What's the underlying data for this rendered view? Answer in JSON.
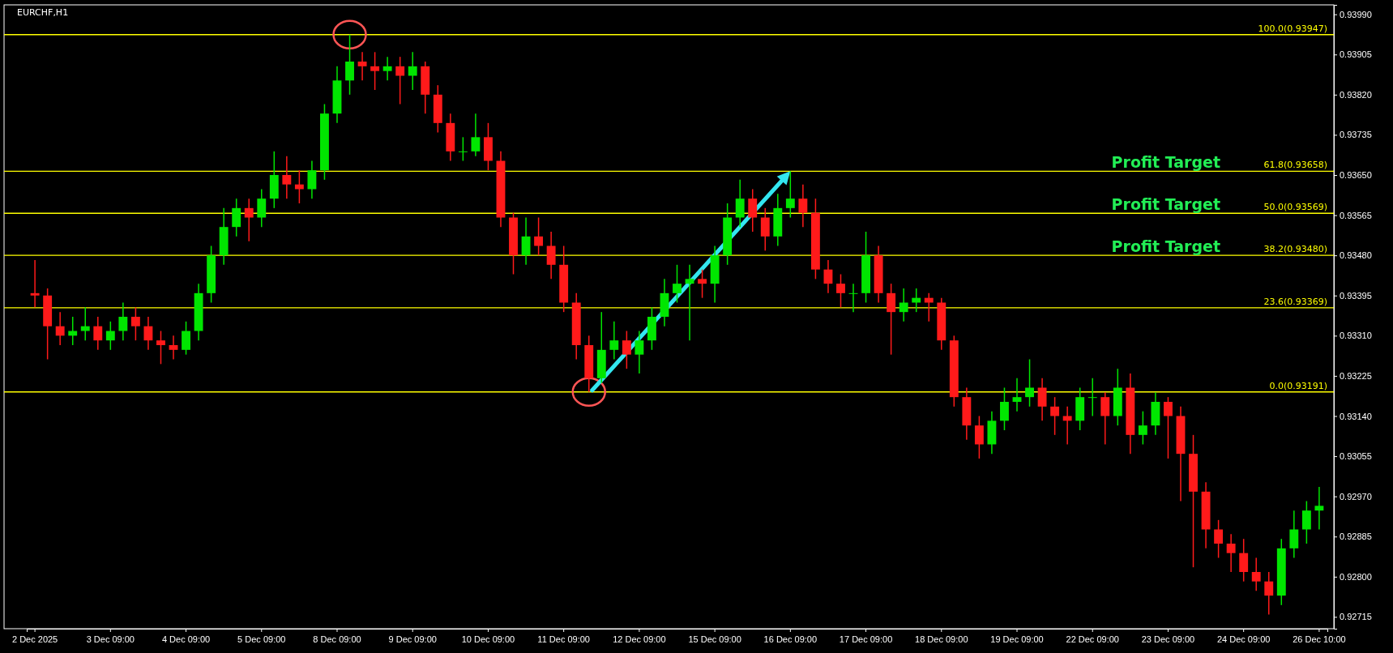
{
  "chart_data": {
    "type": "candlestick",
    "title": "EURCHF,H1",
    "categories": [
      "2 Dec 2025",
      null,
      null,
      null,
      null,
      null,
      "3 Dec 09:00",
      null,
      null,
      null,
      null,
      null,
      "4 Dec 09:00",
      null,
      null,
      null,
      null,
      null,
      "5 Dec 09:00",
      null,
      null,
      null,
      null,
      null,
      "8 Dec 09:00",
      null,
      null,
      null,
      null,
      null,
      "9 Dec 09:00",
      null,
      null,
      null,
      null,
      null,
      "10 Dec 09:00",
      null,
      null,
      null,
      null,
      null,
      "11 Dec 09:00",
      null,
      null,
      null,
      null,
      null,
      "12 Dec 09:00",
      null,
      null,
      null,
      null,
      null,
      "15 Dec 09:00",
      null,
      null,
      null,
      null,
      null,
      "16 Dec 09:00",
      null,
      null,
      null,
      null,
      null,
      "17 Dec 09:00",
      null,
      null,
      null,
      null,
      null,
      "18 Dec 09:00",
      null,
      null,
      null,
      null,
      null,
      "19 Dec 09:00",
      null,
      null,
      null,
      null,
      null,
      "22 Dec 09:00",
      null,
      null,
      null,
      null,
      null,
      "23 Dec 09:00",
      null,
      null,
      null,
      null,
      null,
      "24 Dec 09:00",
      null,
      null,
      null,
      null,
      null,
      "26 Dec 10:00"
    ],
    "ohlc": [
      [
        0.934,
        0.9347,
        0.9337,
        0.93395
      ],
      [
        0.93395,
        0.9341,
        0.9326,
        0.9333
      ],
      [
        0.9333,
        0.9336,
        0.9329,
        0.9331
      ],
      [
        0.9331,
        0.9335,
        0.9329,
        0.9332
      ],
      [
        0.9332,
        0.9337,
        0.933,
        0.9333
      ],
      [
        0.9333,
        0.9335,
        0.9328,
        0.933
      ],
      [
        0.933,
        0.9334,
        0.9328,
        0.9332
      ],
      [
        0.9332,
        0.9338,
        0.933,
        0.9335
      ],
      [
        0.9335,
        0.9337,
        0.933,
        0.9333
      ],
      [
        0.9333,
        0.9335,
        0.9328,
        0.933
      ],
      [
        0.933,
        0.9332,
        0.9325,
        0.9329
      ],
      [
        0.9329,
        0.9331,
        0.9326,
        0.9328
      ],
      [
        0.9328,
        0.9334,
        0.9327,
        0.9332
      ],
      [
        0.9332,
        0.9342,
        0.933,
        0.934
      ],
      [
        0.934,
        0.935,
        0.9338,
        0.9348
      ],
      [
        0.9348,
        0.9358,
        0.9346,
        0.9354
      ],
      [
        0.9354,
        0.936,
        0.9352,
        0.9358
      ],
      [
        0.9358,
        0.936,
        0.9351,
        0.9356
      ],
      [
        0.9356,
        0.9362,
        0.9354,
        0.936
      ],
      [
        0.936,
        0.937,
        0.9358,
        0.9365
      ],
      [
        0.9365,
        0.9369,
        0.936,
        0.9363
      ],
      [
        0.9363,
        0.9366,
        0.9359,
        0.9362
      ],
      [
        0.9362,
        0.9368,
        0.936,
        0.9366
      ],
      [
        0.9366,
        0.938,
        0.9364,
        0.9378
      ],
      [
        0.9378,
        0.9388,
        0.9376,
        0.9385
      ],
      [
        0.9385,
        0.93947,
        0.9382,
        0.9389
      ],
      [
        0.9389,
        0.9391,
        0.9385,
        0.9388
      ],
      [
        0.9388,
        0.9391,
        0.9383,
        0.9387
      ],
      [
        0.9387,
        0.939,
        0.9385,
        0.9388
      ],
      [
        0.9388,
        0.939,
        0.938,
        0.9386
      ],
      [
        0.9386,
        0.9391,
        0.9383,
        0.9388
      ],
      [
        0.9388,
        0.9389,
        0.9378,
        0.9382
      ],
      [
        0.9382,
        0.9384,
        0.9374,
        0.9376
      ],
      [
        0.9376,
        0.9378,
        0.9368,
        0.937
      ],
      [
        0.937,
        0.9373,
        0.9368,
        0.937
      ],
      [
        0.937,
        0.9378,
        0.9369,
        0.9373
      ],
      [
        0.9373,
        0.9376,
        0.9366,
        0.9368
      ],
      [
        0.9368,
        0.937,
        0.9354,
        0.9356
      ],
      [
        0.9356,
        0.9357,
        0.9344,
        0.9348
      ],
      [
        0.9348,
        0.9356,
        0.9346,
        0.9352
      ],
      [
        0.9352,
        0.9356,
        0.9348,
        0.935
      ],
      [
        0.935,
        0.9353,
        0.9343,
        0.9346
      ],
      [
        0.9346,
        0.935,
        0.9336,
        0.9338
      ],
      [
        0.9338,
        0.934,
        0.9326,
        0.9329
      ],
      [
        0.9329,
        0.9331,
        0.93191,
        0.9322
      ],
      [
        0.9322,
        0.9336,
        0.9321,
        0.9328
      ],
      [
        0.9328,
        0.9334,
        0.9326,
        0.933
      ],
      [
        0.933,
        0.9332,
        0.9324,
        0.9327
      ],
      [
        0.9327,
        0.9332,
        0.9323,
        0.933
      ],
      [
        0.933,
        0.9337,
        0.9328,
        0.9335
      ],
      [
        0.9335,
        0.9343,
        0.9333,
        0.934
      ],
      [
        0.934,
        0.9346,
        0.9338,
        0.9342
      ],
      [
        0.9342,
        0.9346,
        0.933,
        0.9343
      ],
      [
        0.9343,
        0.9345,
        0.9339,
        0.9342
      ],
      [
        0.9342,
        0.935,
        0.9338,
        0.9348
      ],
      [
        0.9348,
        0.9359,
        0.9346,
        0.9356
      ],
      [
        0.9356,
        0.9364,
        0.9354,
        0.936
      ],
      [
        0.936,
        0.9362,
        0.9353,
        0.9356
      ],
      [
        0.9356,
        0.9358,
        0.9349,
        0.9352
      ],
      [
        0.9352,
        0.9361,
        0.935,
        0.9358
      ],
      [
        0.9358,
        0.93658,
        0.9356,
        0.936
      ],
      [
        0.936,
        0.9363,
        0.9354,
        0.9357
      ],
      [
        0.9357,
        0.936,
        0.9343,
        0.9345
      ],
      [
        0.9345,
        0.9347,
        0.934,
        0.9342
      ],
      [
        0.9342,
        0.9344,
        0.9337,
        0.934
      ],
      [
        0.934,
        0.9342,
        0.9336,
        0.934
      ],
      [
        0.934,
        0.9353,
        0.9338,
        0.9348
      ],
      [
        0.9348,
        0.935,
        0.9338,
        0.934
      ],
      [
        0.934,
        0.9342,
        0.9327,
        0.9336
      ],
      [
        0.9336,
        0.9341,
        0.9334,
        0.9338
      ],
      [
        0.9338,
        0.9341,
        0.9336,
        0.9339
      ],
      [
        0.9339,
        0.934,
        0.9334,
        0.9338
      ],
      [
        0.9338,
        0.9339,
        0.9328,
        0.933
      ],
      [
        0.933,
        0.9331,
        0.9316,
        0.9318
      ],
      [
        0.9318,
        0.932,
        0.9309,
        0.9312
      ],
      [
        0.9312,
        0.9314,
        0.9305,
        0.9308
      ],
      [
        0.9308,
        0.9315,
        0.9306,
        0.9313
      ],
      [
        0.9313,
        0.932,
        0.9311,
        0.9317
      ],
      [
        0.9317,
        0.9322,
        0.9315,
        0.9318
      ],
      [
        0.9318,
        0.9326,
        0.9316,
        0.932
      ],
      [
        0.932,
        0.9322,
        0.9313,
        0.9316
      ],
      [
        0.9316,
        0.9318,
        0.931,
        0.9314
      ],
      [
        0.9314,
        0.9316,
        0.9308,
        0.9313
      ],
      [
        0.9313,
        0.932,
        0.9311,
        0.9318
      ],
      [
        0.9318,
        0.9322,
        0.9314,
        0.9318
      ],
      [
        0.9318,
        0.9319,
        0.9308,
        0.9314
      ],
      [
        0.9314,
        0.9324,
        0.9312,
        0.932
      ],
      [
        0.932,
        0.9323,
        0.9306,
        0.931
      ],
      [
        0.931,
        0.9315,
        0.9308,
        0.9312
      ],
      [
        0.9312,
        0.9319,
        0.931,
        0.9317
      ],
      [
        0.9317,
        0.9318,
        0.9305,
        0.9314
      ],
      [
        0.9314,
        0.9316,
        0.9296,
        0.9306
      ],
      [
        0.9306,
        0.931,
        0.9282,
        0.9298
      ],
      [
        0.9298,
        0.93,
        0.9286,
        0.929
      ],
      [
        0.929,
        0.9292,
        0.9284,
        0.9287
      ],
      [
        0.9287,
        0.9289,
        0.9281,
        0.9285
      ],
      [
        0.9285,
        0.9288,
        0.9279,
        0.9281
      ],
      [
        0.9281,
        0.9284,
        0.9277,
        0.9279
      ],
      [
        0.9279,
        0.9281,
        0.9272,
        0.9276
      ],
      [
        0.9276,
        0.9288,
        0.9274,
        0.9286
      ],
      [
        0.9286,
        0.9294,
        0.9284,
        0.929
      ],
      [
        0.929,
        0.9296,
        0.9287,
        0.9294
      ],
      [
        0.9294,
        0.9299,
        0.929,
        0.9295
      ]
    ],
    "ylim": [
      0.9269,
      0.9401
    ],
    "yticks": [
      {
        "value": 0.92715,
        "label": "0.92715"
      },
      {
        "value": 0.928,
        "label": "0.92800"
      },
      {
        "value": 0.92885,
        "label": "0.92885"
      },
      {
        "value": 0.9297,
        "label": "0.92970"
      },
      {
        "value": 0.93055,
        "label": "0.93055"
      },
      {
        "value": 0.9314,
        "label": "0.93140"
      },
      {
        "value": 0.93225,
        "label": "0.93225"
      },
      {
        "value": 0.9331,
        "label": "0.93310"
      },
      {
        "value": 0.93395,
        "label": "0.93395"
      },
      {
        "value": 0.9348,
        "label": "0.93480"
      },
      {
        "value": 0.93565,
        "label": "0.93565"
      },
      {
        "value": 0.9365,
        "label": "0.93650"
      },
      {
        "value": 0.93735,
        "label": "0.93735"
      },
      {
        "value": 0.9382,
        "label": "0.93820"
      },
      {
        "value": 0.93905,
        "label": "0.93905"
      },
      {
        "value": 0.9399,
        "label": "0.93990"
      }
    ],
    "ref_lines": [
      {
        "axis": "y",
        "value": 0.93947,
        "label": "100.0(0.93947)",
        "color": "#ffff00"
      },
      {
        "axis": "y",
        "value": 0.93658,
        "label": "61.8(0.93658)",
        "color": "#ffff00"
      },
      {
        "axis": "y",
        "value": 0.93569,
        "label": "50.0(0.93569)",
        "color": "#ffff00"
      },
      {
        "axis": "y",
        "value": 0.9348,
        "label": "38.2(0.93480)",
        "color": "#ffff00"
      },
      {
        "axis": "y",
        "value": 0.93369,
        "label": "23.6(0.93369)",
        "color": "#ffff00"
      },
      {
        "axis": "y",
        "value": 0.93191,
        "label": "0.0(0.93191)",
        "color": "#ffff00"
      }
    ],
    "annotations": [
      {
        "text": "Profit Target",
        "y": 0.93658
      },
      {
        "text": "Profit Target",
        "y": 0.93569
      },
      {
        "text": "Profit Target",
        "y": 0.9348
      }
    ],
    "grid": false
  }
}
